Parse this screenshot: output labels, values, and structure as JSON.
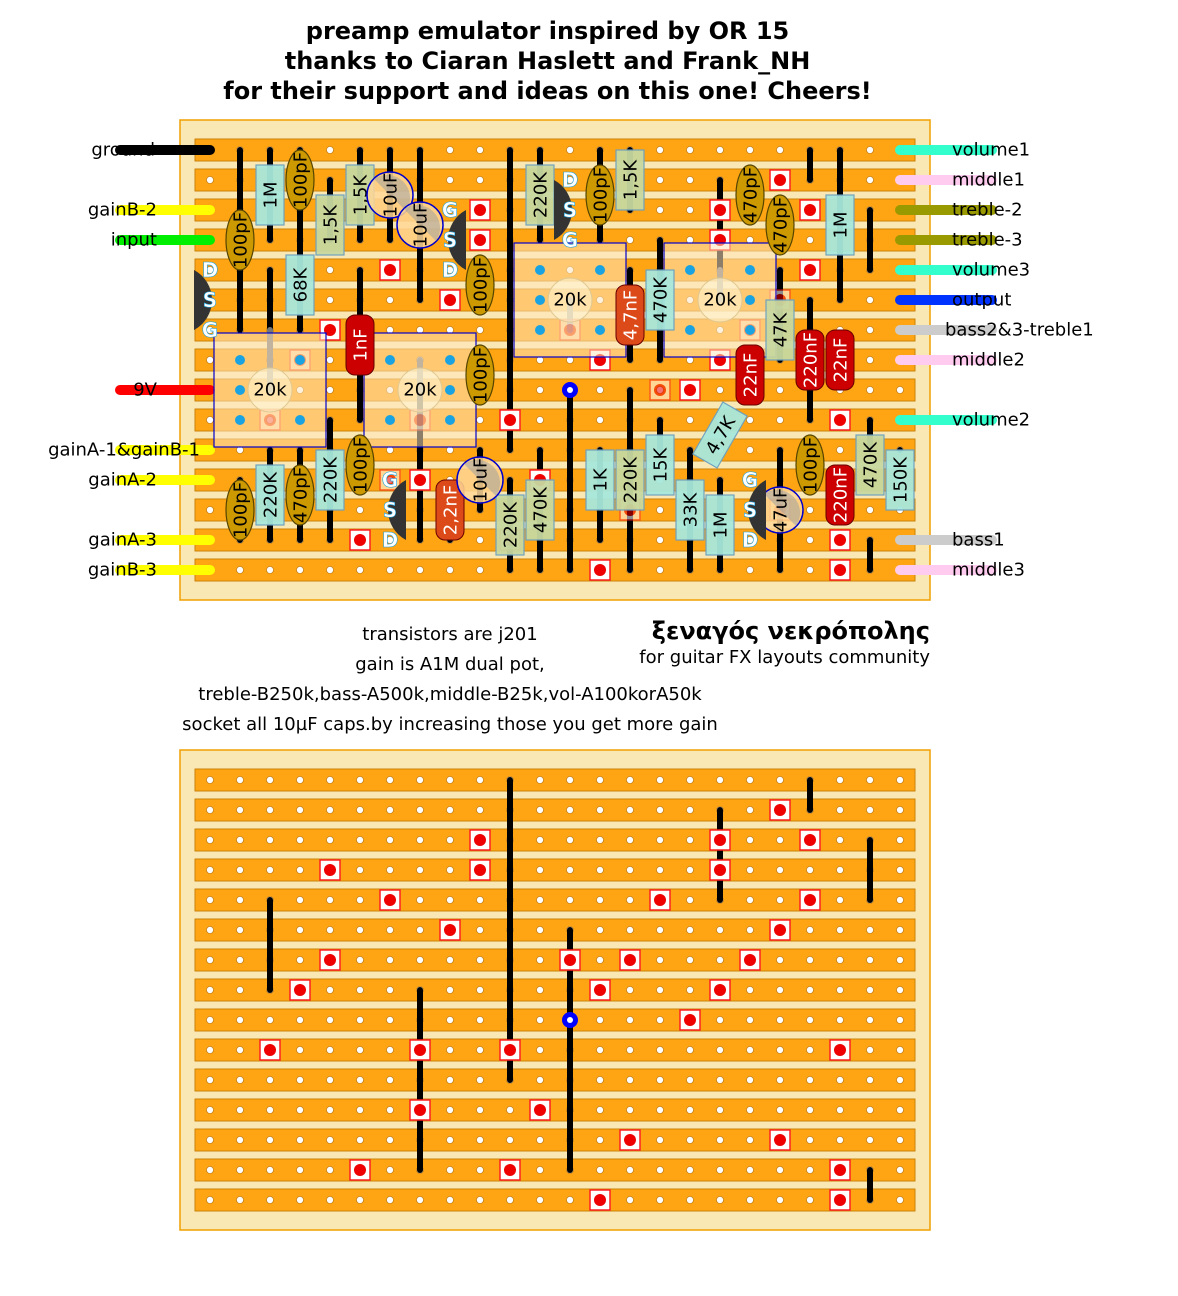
{
  "title": [
    "preamp emulator inspired by OR 15",
    "thanks to Ciaran Haslett and Frank_NH",
    "for their support and ideas on this one! Cheers!"
  ],
  "notes": [
    "transistors are j201",
    "gain is A1M dual pot,",
    "treble-B250k,bass-A500k,middle-B25k,vol-A100korA50k",
    "socket all 10µF caps.by increasing those you get more gain"
  ],
  "credit": {
    "author": "ξεναγός νεκρόπολης",
    "community": "for guitar FX layouts community"
  },
  "left_wires": [
    {
      "label": "ground",
      "color": "#000000"
    },
    {
      "label": "gainB-2",
      "color": "#ffff00"
    },
    {
      "label": "input",
      "color": "#00ee00"
    },
    {
      "label": "9V",
      "color": "#ff0000"
    },
    {
      "label": "gainA-1&gainB-1",
      "color": "#ffff00"
    },
    {
      "label": "gainA-2",
      "color": "#ffff00"
    },
    {
      "label": "gainA-3",
      "color": "#ffff00"
    },
    {
      "label": "gainB-3",
      "color": "#ffff00"
    }
  ],
  "right_wires": [
    {
      "label": "volume1",
      "color": "#33ffcc"
    },
    {
      "label": "middle1",
      "color": "#ffccf0"
    },
    {
      "label": "treble-2",
      "color": "#999900"
    },
    {
      "label": "treble-3",
      "color": "#999900"
    },
    {
      "label": "volume3",
      "color": "#33ffcc"
    },
    {
      "label": "output",
      "color": "#0033ff"
    },
    {
      "label": "bass2&3-treble1",
      "color": "#cccccc"
    },
    {
      "label": "middle2",
      "color": "#ffccf0"
    },
    {
      "label": "volume2",
      "color": "#33ffcc"
    },
    {
      "label": "bass1",
      "color": "#cccccc"
    },
    {
      "label": "middle3",
      "color": "#ffccf0"
    }
  ],
  "resistors": [
    "1M",
    "1,5K",
    "1,5K",
    "68K",
    "220K",
    "1,5K",
    "470K",
    "47K",
    "1M",
    "220K",
    "220K",
    "220K",
    "470K",
    "1K",
    "220K",
    "15K",
    "4,7K",
    "33K",
    "1M",
    "470K",
    "150K"
  ],
  "ceramic_caps": [
    "100pF",
    "100pF",
    "100pF",
    "100pF",
    "100pF",
    "470pF",
    "100pF",
    "100pF",
    "470pF",
    "470pF",
    "100pF"
  ],
  "film_caps": [
    "1nF",
    "22nF",
    "220nF",
    "22nF",
    "220nF",
    "4,7nF",
    "2,2nF"
  ],
  "electrolytic_caps": [
    "10uF",
    "10uF",
    "10uF",
    "47uF"
  ],
  "pots": [
    "20k",
    "20k",
    "20k",
    "20k"
  ],
  "transistors": [
    {
      "pins": [
        "D",
        "S",
        "G"
      ]
    },
    {
      "pins": [
        "G",
        "S",
        "D"
      ]
    },
    {
      "pins": [
        "D",
        "S",
        "G"
      ]
    },
    {
      "pins": [
        "G",
        "S",
        "D"
      ]
    },
    {
      "pins": [
        "G",
        "S",
        "D"
      ]
    }
  ],
  "colors": {
    "strip": "#ffa514",
    "board": "#fae8b4",
    "cut": "#ee0000",
    "resistor": "#a8e8dc",
    "ceramic": "#cc9900",
    "film": "#cc0000"
  }
}
